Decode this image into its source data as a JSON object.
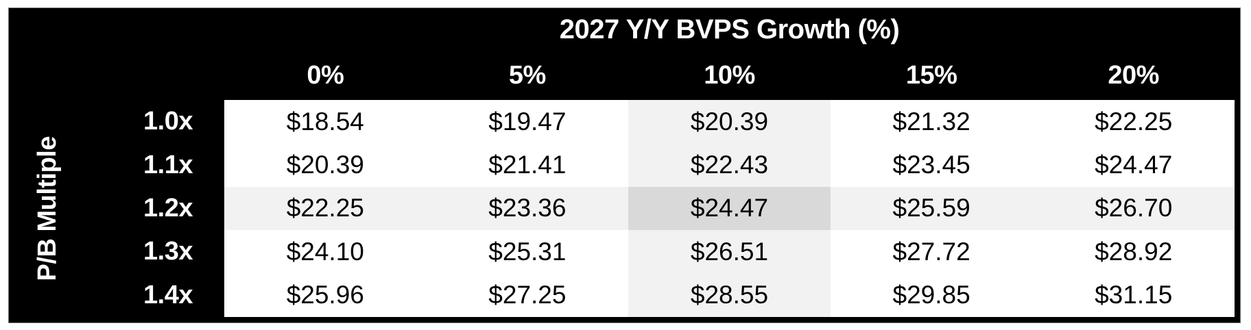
{
  "table": {
    "title": "2027 Y/Y BVPS Growth (%)",
    "row_axis_label": "P/B Multiple",
    "column_headers": [
      "0%",
      "5%",
      "10%",
      "15%",
      "20%"
    ],
    "row_headers": [
      "1.0x",
      "1.1x",
      "1.2x",
      "1.3x",
      "1.4x"
    ],
    "values": [
      [
        "$18.54",
        "$19.47",
        "$20.39",
        "$21.32",
        "$22.25"
      ],
      [
        "$20.39",
        "$21.41",
        "$22.43",
        "$23.45",
        "$24.47"
      ],
      [
        "$22.25",
        "$23.36",
        "$24.47",
        "$25.59",
        "$26.70"
      ],
      [
        "$24.10",
        "$25.31",
        "$26.51",
        "$27.72",
        "$28.92"
      ],
      [
        "$25.96",
        "$27.25",
        "$28.55",
        "$29.85",
        "$31.15"
      ]
    ],
    "highlight": {
      "row": "1.2x",
      "column": "10%",
      "row_index": 2,
      "col_index": 2
    }
  },
  "colors": {
    "frame_background": "#000000",
    "header_text": "#ffffff",
    "cell_background": "#ffffff",
    "cell_text": "#000000",
    "row_col_shade": "#f2f2f2",
    "intersection_shade": "#d9d9d9",
    "frame_border": "#6e6e6e"
  },
  "chart_data": {
    "type": "table",
    "title": "2027 Y/Y BVPS Growth (%)",
    "row_axis_label": "P/B Multiple",
    "columns": [
      "0%",
      "5%",
      "10%",
      "15%",
      "20%"
    ],
    "rows": [
      "1.0x",
      "1.1x",
      "1.2x",
      "1.3x",
      "1.4x"
    ],
    "values": [
      [
        18.54,
        19.47,
        20.39,
        21.32,
        22.25
      ],
      [
        20.39,
        21.41,
        22.43,
        23.45,
        24.47
      ],
      [
        22.25,
        23.36,
        24.47,
        25.59,
        26.7
      ],
      [
        24.1,
        25.31,
        26.51,
        27.72,
        28.92
      ],
      [
        25.96,
        27.25,
        28.55,
        29.85,
        31.15
      ]
    ],
    "value_format": "$0.00",
    "highlight_cell": {
      "row": "1.2x",
      "column": "10%",
      "value": 24.47
    },
    "layout_hints": {
      "header_style": "black background, white bold text",
      "shading": "10% column and 1.2x row light gray; intersection darker gray"
    }
  }
}
